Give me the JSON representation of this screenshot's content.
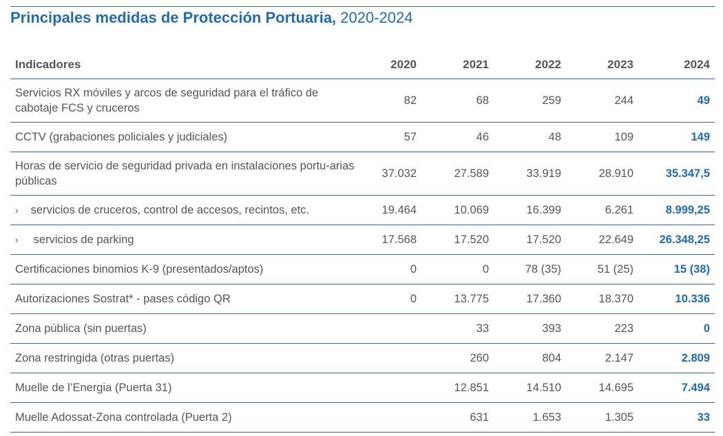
{
  "title": {
    "bold": "Principales medidas de Protección Portuaria,",
    "years": " 2020-2024"
  },
  "headers": [
    "Indicadores",
    "2020",
    "2021",
    "2022",
    "2023",
    "2024"
  ],
  "colors": {
    "accent": "#1f6bb5",
    "rule": "#2e6db4",
    "text": "#555555"
  },
  "rows": [
    {
      "label": "Servicios RX móviles y arcos de seguridad para el tráfico de cabotaje FCS y cruceros",
      "values": [
        "82",
        "68",
        "259",
        "244",
        "49"
      ],
      "tall": true
    },
    {
      "label": "CCTV (grabaciones policiales y judiciales)",
      "values": [
        "57",
        "46",
        "48",
        "109",
        "149"
      ]
    },
    {
      "label": "Horas de servicio de seguridad privada en instalaciones portu-arias públicas",
      "values": [
        "37.032",
        "27.589",
        "33.919",
        "28.910",
        "35.347,5"
      ],
      "tall": true
    },
    {
      "label": "servicios de cruceros, control de accesos, recintos, etc.",
      "values": [
        "19.464",
        "10.069",
        "16.399",
        "6.261",
        "8.999,25"
      ],
      "icon": "chevron-right-icon"
    },
    {
      "label": "servicios de parking",
      "values": [
        "17.568",
        "17.520",
        "17.520",
        "22.649",
        "26.348,25"
      ],
      "icon": "chevron-right-icon"
    },
    {
      "label": "Certificaciones binomios K-9 (presentados/aptos)",
      "values": [
        "0",
        "0",
        "78 (35)",
        "51 (25)",
        "15 (38)"
      ]
    },
    {
      "label": "Autorizaciones Sostrat* - pases código QR",
      "values": [
        "0",
        "13.775",
        "17.360",
        "18.370",
        "10.336"
      ]
    },
    {
      "label": "Zona pública (sin puertas)",
      "values": [
        "",
        "33",
        "393",
        "223",
        "0"
      ],
      "indent": true
    },
    {
      "label": "Zona restringida (otras puertas)",
      "values": [
        "",
        "260",
        "804",
        "2.147",
        "2.809"
      ],
      "indent": true
    },
    {
      "label": "Muelle de l’Energia (Puerta 31)",
      "values": [
        "",
        "12.851",
        "14.510",
        "14.695",
        "7.494"
      ],
      "indent": true
    },
    {
      "label": "Muelle Adossat-Zona controlada (Puerta 2)",
      "values": [
        "",
        "631",
        "1.653",
        "1.305",
        "33"
      ],
      "indent": true
    }
  ]
}
